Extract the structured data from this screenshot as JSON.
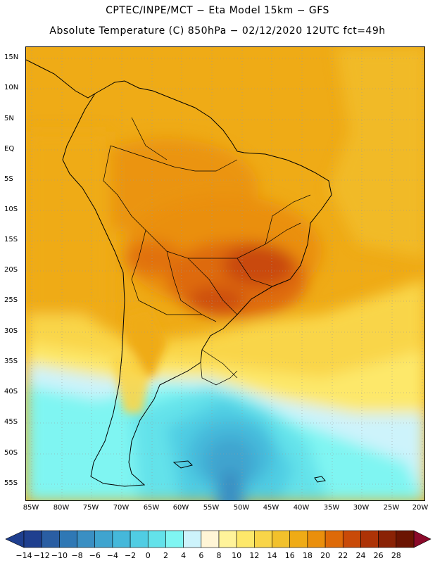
{
  "header": {
    "title_line1": "CPTEC/INPE/MCT  −   Eta Model 15km  −  GFS",
    "title_line2": "Absolute Temperature (C) 850hPa − 02/12/2020 12UTC fct=49h"
  },
  "map": {
    "lat_labels": [
      "15N",
      "10N",
      "5N",
      "EQ",
      "5S",
      "10S",
      "15S",
      "20S",
      "25S",
      "30S",
      "35S",
      "40S",
      "45S",
      "50S",
      "55S"
    ],
    "lon_labels": [
      "85W",
      "80W",
      "75W",
      "70W",
      "65W",
      "60W",
      "55W",
      "50W",
      "45W",
      "40W",
      "35W",
      "30W",
      "25W",
      "20W"
    ]
  },
  "colorbar": {
    "labels": [
      "-14",
      "-12",
      "-10",
      "-8",
      "-6",
      "-4",
      "-2",
      "0",
      "2",
      "4",
      "6",
      "8",
      "10",
      "12",
      "14",
      "16",
      "18",
      "20",
      "22",
      "24",
      "26",
      "28"
    ],
    "colors": [
      "#1f3f8f",
      "#2a5ea3",
      "#2f78b5",
      "#3a8fc3",
      "#3fa4cf",
      "#45b8da",
      "#50cde3",
      "#63e2ea",
      "#7ff5f2",
      "#cdf3fb",
      "#fff5d6",
      "#fff39a",
      "#fde86a",
      "#f9d548",
      "#f2c12c",
      "#efab16",
      "#ea8f0c",
      "#de6a08",
      "#c94a08",
      "#ad3306",
      "#8a2205",
      "#6b1402"
    ]
  }
}
